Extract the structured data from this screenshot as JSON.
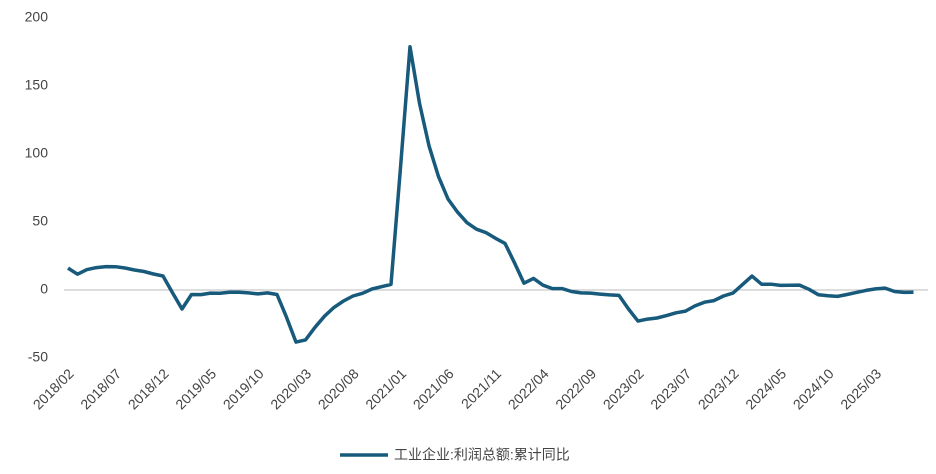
{
  "chart_data": {
    "type": "line",
    "categories": [
      "2018/02",
      null,
      null,
      null,
      null,
      "2018/07",
      null,
      null,
      null,
      null,
      "2018/12",
      null,
      null,
      null,
      null,
      "2019/05",
      null,
      null,
      null,
      null,
      "2019/10",
      null,
      null,
      null,
      null,
      "2020/03",
      null,
      null,
      null,
      null,
      "2020/08",
      null,
      null,
      null,
      null,
      "2021/01",
      null,
      null,
      null,
      null,
      "2021/06",
      null,
      null,
      null,
      null,
      "2021/11",
      null,
      null,
      null,
      null,
      "2022/04",
      null,
      null,
      null,
      null,
      "2022/09",
      null,
      null,
      null,
      null,
      "2023/02",
      null,
      null,
      null,
      null,
      "2023/07",
      null,
      null,
      null,
      null,
      "2023/12",
      null,
      null,
      null,
      null,
      "2024/05",
      null,
      null,
      null,
      null,
      "2024/10",
      null,
      null,
      null,
      null,
      "2025/03",
      null,
      null,
      null,
      null
    ],
    "series": [
      {
        "name": "工业企业:利润总额:累计同比",
        "color": "#175a7c",
        "values": [
          16.1,
          11.6,
          15.0,
          16.5,
          17.2,
          17.1,
          16.2,
          14.7,
          13.6,
          11.8,
          10.3,
          -2,
          -14.0,
          -3.3,
          -3.4,
          -2.3,
          -2.4,
          -1.7,
          -1.7,
          -2.1,
          -2.9,
          -2.1,
          -3.3,
          -20,
          -38.3,
          -36.7,
          -27.4,
          -19.3,
          -12.8,
          -8.1,
          -4.4,
          -2.4,
          0.7,
          2.4,
          4.1,
          90,
          178.9,
          137.3,
          106.0,
          83.4,
          66.9,
          57.3,
          49.5,
          44.7,
          42.2,
          38.0,
          34.3,
          20,
          5.0,
          8.5,
          3.5,
          1.0,
          1.0,
          -1.1,
          -2.1,
          -2.3,
          -3.0,
          -3.6,
          -4.0,
          -14,
          -22.9,
          -21.4,
          -20.6,
          -18.8,
          -16.8,
          -15.5,
          -11.7,
          -9.0,
          -7.8,
          -4.4,
          -2.3,
          4,
          10.2,
          4.3,
          4.3,
          3.4,
          3.5,
          3.6,
          0.5,
          -3.5,
          -4.3,
          -4.7,
          -3.3,
          -1.8,
          -0.3,
          0.8,
          1.4,
          -1.1,
          -1.8,
          -1.7
        ]
      }
    ],
    "ylim": [
      -50,
      200
    ],
    "yticks": [
      -50,
      0,
      50,
      100,
      150,
      200
    ],
    "grid": false
  }
}
